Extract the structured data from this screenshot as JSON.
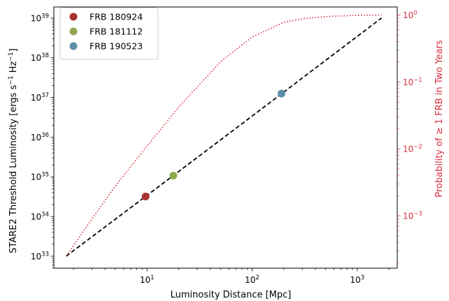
{
  "chart_data": {
    "type": "line",
    "title": "",
    "xlabel": "Luminosity Distance [Mpc]",
    "ylabel_left": {
      "base": "STARE2 Threshold Luminosity [ergs s",
      "exp1": "−1",
      "mid": " Hz",
      "exp2": "−1",
      "end": "]"
    },
    "ylabel_right": "Probability of  ≥ 1 FRB in Two Years",
    "x_scale": "log",
    "y_scale_left": "log",
    "y_scale_right": "log",
    "xlim": [
      1.3,
      2400
    ],
    "ylim_left": [
      5e+32,
      1.9e+39
    ],
    "ylim_right": [
      0.000165,
      1.32
    ],
    "grid": false,
    "legend_position": "upper-left",
    "x_ticks": [
      {
        "base": "10",
        "exp": "1",
        "value": 10
      },
      {
        "base": "10",
        "exp": "2",
        "value": 100
      },
      {
        "base": "10",
        "exp": "3",
        "value": 1000
      }
    ],
    "y_ticks_left": [
      {
        "base": "10",
        "exp": "33",
        "value": 1e+33
      },
      {
        "base": "10",
        "exp": "34",
        "value": 1e+34
      },
      {
        "base": "10",
        "exp": "35",
        "value": 1e+35
      },
      {
        "base": "10",
        "exp": "36",
        "value": 1e+36
      },
      {
        "base": "10",
        "exp": "37",
        "value": 1e+37
      },
      {
        "base": "10",
        "exp": "38",
        "value": 1e+38
      },
      {
        "base": "10",
        "exp": "39",
        "value": 1e+39
      }
    ],
    "y_ticks_right": [
      {
        "base": "10",
        "exp": "−3",
        "value": 0.001
      },
      {
        "base": "10",
        "exp": "−2",
        "value": 0.01
      },
      {
        "base": "10",
        "exp": "−1",
        "value": 0.1
      },
      {
        "base": "10",
        "exp": "0",
        "value": 1
      }
    ],
    "series": [
      {
        "name": "",
        "axis": "left",
        "style": "dashed",
        "color": "#000000",
        "x": [
          1.7,
          10,
          100,
          1700
        ],
        "y": [
          1e+33,
          3.4e+34,
          3.4e+36,
          1e+39
        ]
      },
      {
        "name": "",
        "axis": "right",
        "style": "dotted",
        "color": "#d62f3f",
        "x": [
          1.7,
          3,
          5,
          10,
          20,
          50,
          100,
          200,
          300,
          500,
          700,
          1000,
          1700
        ],
        "y": [
          0.00025,
          0.0009,
          0.0028,
          0.011,
          0.042,
          0.2,
          0.47,
          0.78,
          0.88,
          0.95,
          0.97,
          0.99,
          1.0
        ]
      }
    ],
    "points": [
      {
        "name": "FRB 180924",
        "color": "#a83232",
        "x": 9.7,
        "y": 3.2e+34
      },
      {
        "name": "FRB 181112",
        "color": "#8fa84e",
        "x": 17.8,
        "y": 1.07e+35
      },
      {
        "name": "FRB 190523",
        "color": "#5c8fa8",
        "x": 190,
        "y": 1.25e+37
      }
    ],
    "colors": {
      "right_axis": "#d62f3f",
      "axis": "#000000"
    }
  }
}
